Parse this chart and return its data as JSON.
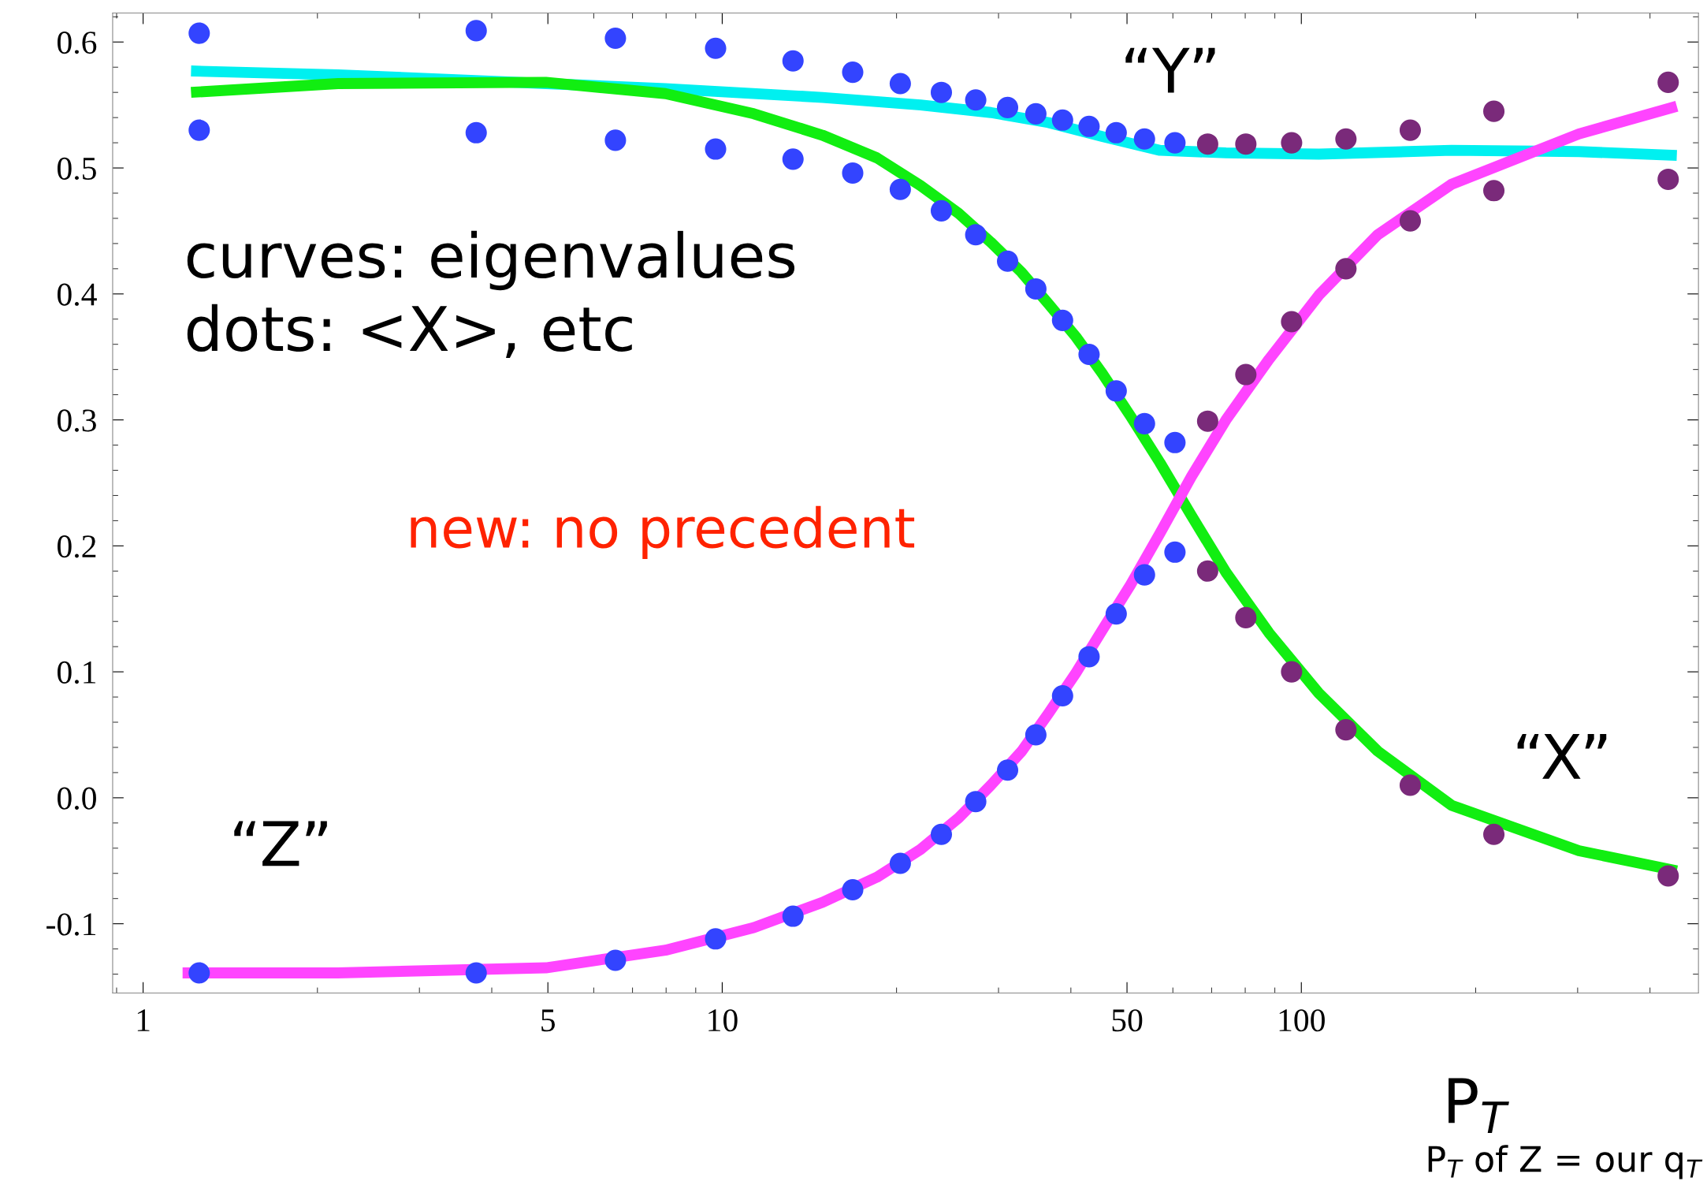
{
  "chart_data": {
    "type": "line",
    "log": "x",
    "xlabel": "P$_{T}$",
    "xlim": [
      0.886,
      485
    ],
    "xticks": [
      1,
      5,
      10,
      50,
      100
    ],
    "ylim": [
      -0.155,
      0.623
    ],
    "yticks": [
      {
        "value": -0.1,
        "label": "-0.1"
      },
      {
        "value": 0.0,
        "label": "0.0"
      },
      0.1,
      0.2,
      0.3,
      0.4,
      0.5,
      0.6
    ],
    "grid": false,
    "series": [
      {
        "color": "#00f0f0",
        "x": [
          1.21,
          2.17,
          4.96,
          7.98,
          14.9,
          22.0,
          29.1,
          36.6,
          45.3,
          57.0,
          74.1,
          107.2,
          181.7,
          301.5,
          445
        ],
        "values": [
          0.577,
          0.574,
          0.567,
          0.563,
          0.556,
          0.55,
          0.544,
          0.536,
          0.525,
          0.514,
          0.512,
          0.511,
          0.514,
          0.513,
          0.51
        ]
      },
      {
        "color": "#11ee11",
        "x": [
          1.21,
          2.17,
          4.96,
          7.98,
          11.34,
          14.9,
          18.5,
          22.0,
          25.6,
          29.1,
          32.9,
          36.6,
          40.8,
          45.3,
          50.7,
          57.0,
          64.6,
          74.1,
          87.9,
          107.2,
          135.5,
          181.7,
          301.5,
          445
        ],
        "values": [
          0.56,
          0.567,
          0.568,
          0.559,
          0.543,
          0.526,
          0.508,
          0.486,
          0.464,
          0.441,
          0.417,
          0.392,
          0.366,
          0.337,
          0.303,
          0.266,
          0.224,
          0.179,
          0.131,
          0.083,
          0.037,
          -0.006,
          -0.042,
          -0.058
        ]
      },
      {
        "color": "#ff44ff",
        "x": [
          1.17,
          2.17,
          4.96,
          7.98,
          11.34,
          14.9,
          18.5,
          22.0,
          25.6,
          29.1,
          32.9,
          36.6,
          40.8,
          45.3,
          50.7,
          57.0,
          64.6,
          74.1,
          87.9,
          107.2,
          135.5,
          181.7,
          301.5,
          445
        ],
        "values": [
          -0.139,
          -0.139,
          -0.135,
          -0.121,
          -0.103,
          -0.083,
          -0.063,
          -0.041,
          -0.016,
          0.01,
          0.037,
          0.067,
          0.099,
          0.133,
          0.169,
          0.21,
          0.255,
          0.3,
          0.348,
          0.399,
          0.447,
          0.487,
          0.527,
          0.549
        ]
      },
      {
        "type": "scatter",
        "marker": "circle",
        "x": [
          1.25,
          3.76,
          6.54,
          9.74,
          13.25,
          16.8,
          20.3,
          23.9,
          27.4,
          31.1,
          34.8,
          38.7,
          43.0,
          47.9,
          53.6,
          60.5,
          68.9,
          80.2,
          96.2,
          119.4,
          154.2,
          215,
          430
        ],
        "values": [
          0.607,
          0.609,
          0.603,
          0.595,
          0.585,
          0.576,
          0.567,
          0.56,
          0.554,
          0.548,
          0.543,
          0.538,
          0.533,
          0.528,
          0.523,
          0.52,
          0.519,
          0.519,
          0.52,
          0.523,
          0.53,
          0.545,
          0.568
        ],
        "colors": [
          "#3344ff",
          "#3344ff",
          "#3344ff",
          "#3344ff",
          "#3344ff",
          "#3344ff",
          "#3344ff",
          "#3344ff",
          "#3344ff",
          "#3344ff",
          "#3344ff",
          "#3344ff",
          "#3344ff",
          "#3344ff",
          "#3344ff",
          "#3344ff",
          "#7a2a7a",
          "#7a2a7a",
          "#7a2a7a",
          "#7a2a7a",
          "#7a2a7a",
          "#7a2a7a",
          "#7a2a7a"
        ]
      },
      {
        "type": "scatter",
        "marker": "circle",
        "x": [
          1.25,
          3.76,
          6.54,
          9.74,
          13.25,
          16.8,
          20.3,
          23.9,
          27.4,
          31.1,
          34.8,
          38.7,
          43.0,
          47.9,
          53.6,
          60.5,
          68.9,
          80.2,
          96.2,
          119.4,
          154.2,
          215,
          430
        ],
        "values": [
          0.53,
          0.528,
          0.522,
          0.515,
          0.507,
          0.496,
          0.483,
          0.466,
          0.447,
          0.426,
          0.404,
          0.379,
          0.352,
          0.323,
          0.297,
          0.282,
          0.18,
          0.143,
          0.1,
          0.054,
          0.01,
          -0.029,
          -0.062
        ],
        "colors": [
          "#3344ff",
          "#3344ff",
          "#3344ff",
          "#3344ff",
          "#3344ff",
          "#3344ff",
          "#3344ff",
          "#3344ff",
          "#3344ff",
          "#3344ff",
          "#3344ff",
          "#3344ff",
          "#3344ff",
          "#3344ff",
          "#3344ff",
          "#3344ff",
          "#7a2a7a",
          "#7a2a7a",
          "#7a2a7a",
          "#7a2a7a",
          "#7a2a7a",
          "#7a2a7a",
          "#7a2a7a"
        ]
      },
      {
        "type": "scatter",
        "marker": "circle",
        "x": [
          1.25,
          3.76,
          6.54,
          9.74,
          13.25,
          16.8,
          20.3,
          23.9,
          27.4,
          31.1,
          34.8,
          38.7,
          43.0,
          47.9,
          53.6,
          60.5,
          68.9,
          80.2,
          96.2,
          119.4,
          154.2,
          215,
          430
        ],
        "values": [
          -0.139,
          -0.139,
          -0.129,
          -0.112,
          -0.094,
          -0.073,
          -0.052,
          -0.029,
          -0.003,
          0.022,
          0.05,
          0.081,
          0.112,
          0.146,
          0.177,
          0.195,
          0.299,
          0.336,
          0.378,
          0.42,
          0.458,
          0.482,
          0.491
        ],
        "colors": [
          "#3344ff",
          "#3344ff",
          "#3344ff",
          "#3344ff",
          "#3344ff",
          "#3344ff",
          "#3344ff",
          "#3344ff",
          "#3344ff",
          "#3344ff",
          "#3344ff",
          "#3344ff",
          "#3344ff",
          "#3344ff",
          "#3344ff",
          "#3344ff",
          "#7a2a7a",
          "#7a2a7a",
          "#7a2a7a",
          "#7a2a7a",
          "#7a2a7a",
          "#7a2a7a",
          "#7a2a7a"
        ]
      }
    ],
    "annotations": [
      "“Y”",
      "“X”",
      "“Z”",
      "curves: eigenvalues\ndots: <X>, etc",
      "new: no precedent",
      "P$_{T}$ of Z = our q$_{T}$"
    ]
  }
}
